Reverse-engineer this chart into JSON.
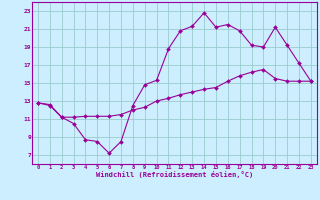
{
  "xlabel": "Windchill (Refroidissement éolien,°C)",
  "bg_color": "#cceeff",
  "grid_color": "#99cccc",
  "line_color": "#990099",
  "xlim": [
    -0.5,
    23.5
  ],
  "ylim": [
    6,
    24
  ],
  "xticks": [
    0,
    1,
    2,
    3,
    4,
    5,
    6,
    7,
    8,
    9,
    10,
    11,
    12,
    13,
    14,
    15,
    16,
    17,
    18,
    19,
    20,
    21,
    22,
    23
  ],
  "yticks": [
    7,
    9,
    11,
    13,
    15,
    17,
    19,
    21,
    23
  ],
  "line1_x": [
    0,
    1,
    2,
    3,
    4,
    5,
    6,
    7,
    8,
    9,
    10,
    11,
    12,
    13,
    14,
    15,
    16,
    17,
    18,
    19,
    20,
    21,
    22,
    23
  ],
  "line1_y": [
    12.8,
    12.5,
    11.2,
    10.5,
    8.7,
    8.5,
    7.2,
    8.5,
    12.5,
    14.8,
    15.3,
    18.8,
    20.8,
    21.3,
    22.8,
    21.2,
    21.5,
    20.8,
    19.2,
    19.0,
    21.2,
    19.2,
    17.2,
    15.2
  ],
  "line2_x": [
    0,
    1,
    2,
    3,
    4,
    5,
    6,
    7,
    8,
    9,
    10,
    11,
    12,
    13,
    14,
    15,
    16,
    17,
    18,
    19,
    20,
    21,
    22,
    23
  ],
  "line2_y": [
    12.8,
    12.6,
    11.2,
    11.2,
    11.3,
    11.3,
    11.3,
    11.5,
    12.0,
    12.3,
    13.0,
    13.3,
    13.7,
    14.0,
    14.3,
    14.5,
    15.2,
    15.8,
    16.2,
    16.5,
    15.5,
    15.2,
    15.2,
    15.2
  ]
}
